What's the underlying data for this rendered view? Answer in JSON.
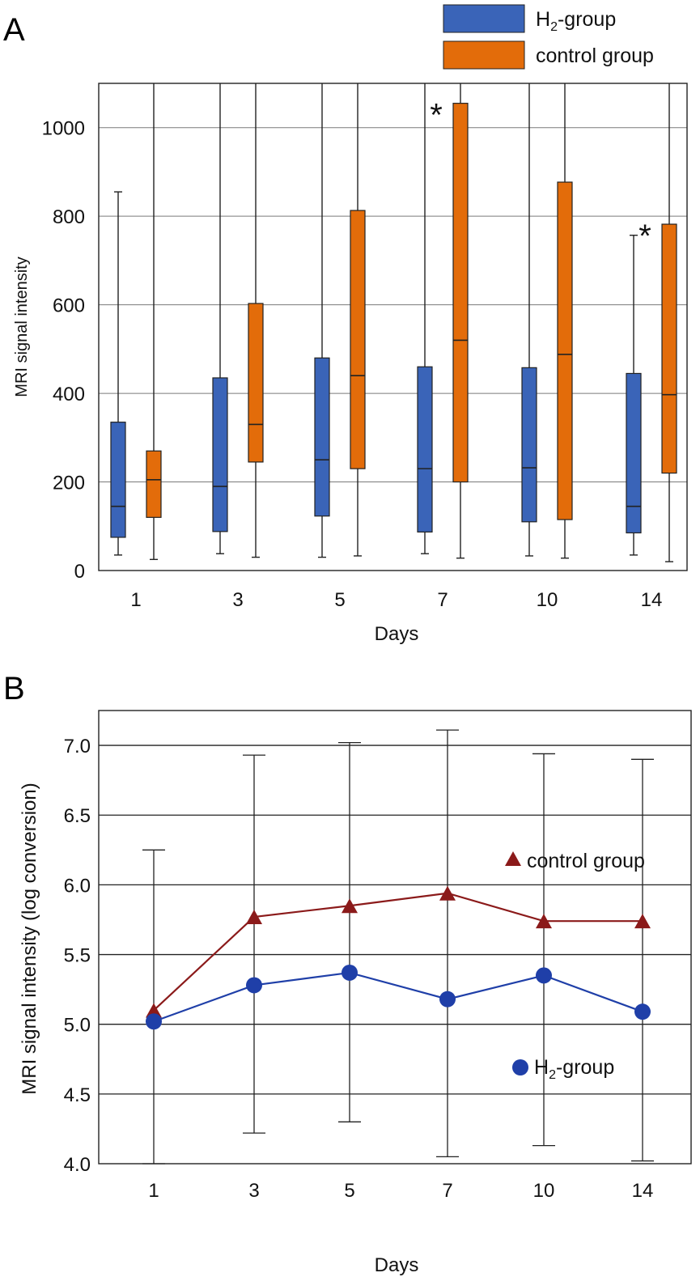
{
  "chart_data": [
    {
      "panel": "A",
      "type": "box",
      "title": "",
      "xlabel": "Days",
      "ylabel": "MRI signal intensity",
      "categories": [
        "1",
        "3",
        "5",
        "7",
        "10",
        "14"
      ],
      "ylim": [
        0,
        1100
      ],
      "yticks": [
        0,
        200,
        400,
        600,
        800,
        1000
      ],
      "grid": true,
      "legend_position": "top-right",
      "series": [
        {
          "name": "H2-group",
          "legend_main": "H",
          "legend_sub": "2",
          "legend_rest": "-group",
          "color": "#3a64b8",
          "boxes": [
            {
              "min": 35,
              "q1": 75,
              "median": 145,
              "q3": 335,
              "max": 855
            },
            {
              "min": 38,
              "q1": 88,
              "median": 190,
              "q3": 435,
              "max": 1100
            },
            {
              "min": 30,
              "q1": 123,
              "median": 250,
              "q3": 480,
              "max": 1100
            },
            {
              "min": 38,
              "q1": 87,
              "median": 230,
              "q3": 460,
              "max": 1100
            },
            {
              "min": 33,
              "q1": 110,
              "median": 232,
              "q3": 458,
              "max": 1100
            },
            {
              "min": 35,
              "q1": 85,
              "median": 145,
              "q3": 445,
              "max": 757
            }
          ]
        },
        {
          "name": "control group",
          "legend_main": "control group",
          "color": "#e36c0a",
          "boxes": [
            {
              "min": 25,
              "q1": 120,
              "median": 205,
              "q3": 270,
              "max": 1100
            },
            {
              "min": 30,
              "q1": 245,
              "median": 330,
              "q3": 603,
              "max": 1100
            },
            {
              "min": 33,
              "q1": 230,
              "median": 440,
              "q3": 813,
              "max": 1100
            },
            {
              "min": 28,
              "q1": 200,
              "median": 520,
              "q3": 1055,
              "max": 1100
            },
            {
              "min": 28,
              "q1": 115,
              "median": 488,
              "q3": 877,
              "max": 1100
            },
            {
              "min": 20,
              "q1": 220,
              "median": 397,
              "q3": 782,
              "max": 1100
            }
          ]
        }
      ],
      "annotations": [
        {
          "text": "*",
          "category": "7",
          "value": 1055
        },
        {
          "text": "*",
          "category": "14",
          "value": 782
        }
      ]
    },
    {
      "panel": "B",
      "type": "line",
      "title": "",
      "xlabel": "Days",
      "ylabel": "MRI signal intensity (log conversion)",
      "categories": [
        "1",
        "3",
        "5",
        "7",
        "10",
        "14"
      ],
      "ylim": [
        4.0,
        7.25
      ],
      "yticks": [
        "4.0",
        "4.5",
        "5.0",
        "5.5",
        "6.0",
        "6.5",
        "7.0"
      ],
      "grid": true,
      "error_bars": {
        "upper": [
          6.25,
          6.93,
          7.02,
          7.11,
          6.94,
          6.9
        ],
        "lower": [
          4.0,
          4.22,
          4.3,
          4.05,
          4.13,
          4.02
        ]
      },
      "series": [
        {
          "name": "control group",
          "marker": "triangle",
          "color": "#8b1a1a",
          "values": [
            5.1,
            5.77,
            5.85,
            5.94,
            5.74,
            5.74
          ]
        },
        {
          "name": "H2-group",
          "legend_main": "H",
          "legend_sub": "2",
          "legend_rest": "-group",
          "marker": "circle",
          "color": "#1f3fa8",
          "values": [
            5.02,
            5.28,
            5.37,
            5.18,
            5.35,
            5.09
          ]
        }
      ]
    }
  ],
  "labels": {
    "panel_a": "A",
    "panel_b": "B",
    "asterisk": "*"
  }
}
